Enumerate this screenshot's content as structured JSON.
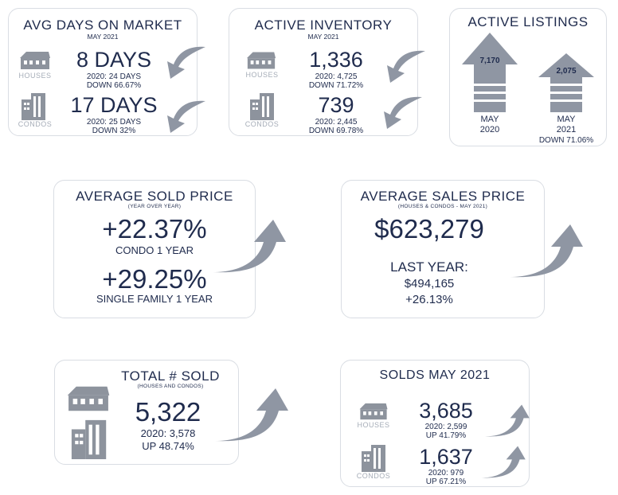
{
  "avg_days": {
    "title": "AVG DAYS ON MARKET",
    "subtitle": "MAY 2021",
    "houses": {
      "label": "HOUSES",
      "value": "8 DAYS",
      "prev": "2020: 24 DAYS",
      "change": "DOWN 66.67%"
    },
    "condos": {
      "label": "CONDOS",
      "value": "17 DAYS",
      "prev": "2020: 25 DAYS",
      "change": "DOWN 32%"
    }
  },
  "active_inventory": {
    "title": "ACTIVE INVENTORY",
    "subtitle": "MAY 2021",
    "houses": {
      "label": "HOUSES",
      "value": "1,336",
      "prev": "2020: 4,725",
      "change": "DOWN 71.72%"
    },
    "condos": {
      "label": "CONDOS",
      "value": "739",
      "prev": "2020: 2,445",
      "change": "DOWN 69.78%"
    }
  },
  "active_listings": {
    "title": "ACTIVE LISTINGS",
    "bar_2020": {
      "value": "7,170",
      "label_line1": "MAY",
      "label_line2": "2020"
    },
    "bar_2021": {
      "value": "2,075",
      "label_line1": "MAY",
      "label_line2": "2021",
      "change": "DOWN 71.06%"
    }
  },
  "avg_sold_price": {
    "title": "AVERAGE SOLD PRICE",
    "subtitle": "(YEAR OVER YEAR)",
    "condo": {
      "value": "+22.37%",
      "label": "CONDO 1 YEAR"
    },
    "single_family": {
      "value": "+29.25%",
      "label": "SINGLE FAMILY 1 YEAR"
    }
  },
  "avg_sales_price": {
    "title": "AVERAGE SALES PRICE",
    "subtitle": "(HOUSES & CONDOS - MAY 2021)",
    "value": "$623,279",
    "last_year_label": "LAST YEAR:",
    "last_year_value": "$494,165",
    "change": "+26.13%"
  },
  "total_sold": {
    "title": "TOTAL # SOLD",
    "subtitle": "(HOUSES AND CONDOS)",
    "value": "5,322",
    "prev": "2020: 3,578",
    "change": "UP 48.74%"
  },
  "solds_may": {
    "title": "SOLDS MAY 2021",
    "houses": {
      "label": "HOUSES",
      "value": "3,685",
      "prev": "2020: 2,599",
      "change": "UP 41.79%"
    },
    "condos": {
      "label": "CONDOS",
      "value": "1,637",
      "prev": "2020: 979",
      "change": "UP 67.21%"
    }
  },
  "colors": {
    "navy": "#1f2b4d",
    "arrow_gray": "#8f96a3",
    "icon_gray": "#8d939d"
  }
}
